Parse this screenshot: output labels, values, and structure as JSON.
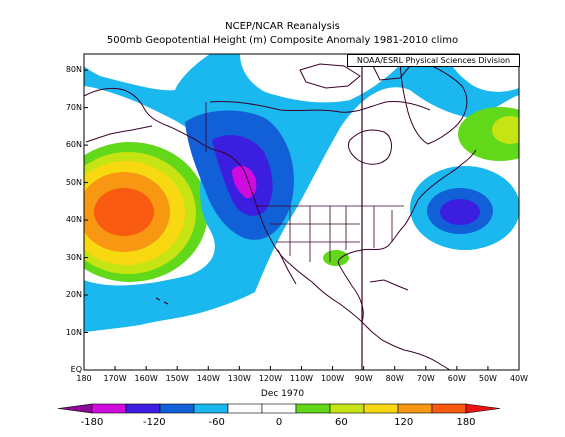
{
  "title": "NCEP/NCAR Reanalysis",
  "subtitle": "500mb Geopotential Height (m) Composite Anomaly 1981-2010 climo",
  "credit": "NOAA/ESRL Physical Sciences Division",
  "date_label": "Dec 1970",
  "lat_labels": [
    "80N",
    "70N",
    "60N",
    "50N",
    "40N",
    "30N",
    "20N",
    "10N",
    "EQ"
  ],
  "lon_labels": [
    "180",
    "170W",
    "160W",
    "150W",
    "140W",
    "130W",
    "120W",
    "110W",
    "100W",
    "90W",
    "80W",
    "70W",
    "60W",
    "50W",
    "40W"
  ],
  "colorbar": {
    "labels": [
      "-180",
      "-120",
      "-60",
      "0",
      "60",
      "120",
      "180"
    ],
    "colors": [
      "#8a0a96",
      "#cf0bde",
      "#3b1ee0",
      "#1260d8",
      "#1ab8ee",
      "#ffffff",
      "#ffffff",
      "#62d81a",
      "#c6e413",
      "#f8d810",
      "#f89812",
      "#f85a10",
      "#ee1212"
    ]
  },
  "colors": {
    "land_outline": "#3a002a",
    "map_background": "#ffffff",
    "anomaly_positive_core": "#f85a10",
    "anomaly_negative_core": "#cf0bde"
  }
}
